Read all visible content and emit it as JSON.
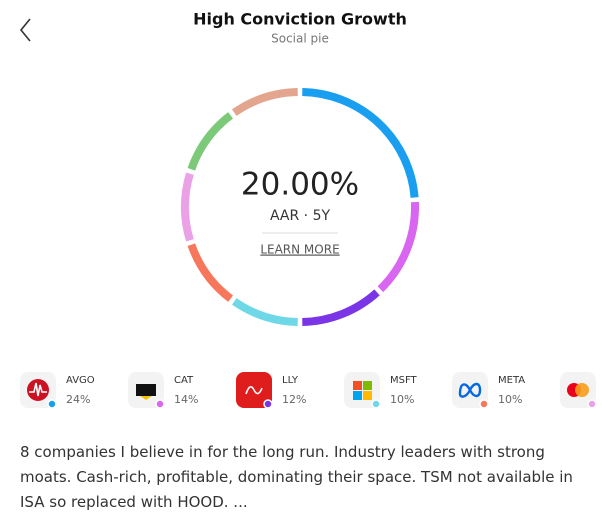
{
  "header": {
    "title": "High Conviction Growth",
    "subtitle": "Social pie"
  },
  "summary": {
    "value": "20.00%",
    "label": "AAR · 5Y",
    "link": "LEARN MORE"
  },
  "chart_data": {
    "type": "pie",
    "categories": [
      "AVGO",
      "CAT",
      "LLY",
      "MSFT",
      "META",
      null,
      null,
      null
    ],
    "values": [
      24,
      14,
      12,
      10,
      10,
      10,
      10,
      10
    ],
    "value_labels": [
      "24%",
      "14%",
      "12%",
      "10%",
      "10%",
      null,
      null,
      null
    ],
    "colors": [
      "#1a9ff0",
      "#d966f0",
      "#7a35e6",
      "#6fd8e6",
      "#f7775c",
      "#eaa1e6",
      "#7cc97a",
      "#e3a58e"
    ]
  },
  "description": "8 companies I believe in for the long run. Industry leaders with strong moats. Cash-rich, profitable, dominating their space. TSM not available in ISA so replaced with HOOD. ..."
}
